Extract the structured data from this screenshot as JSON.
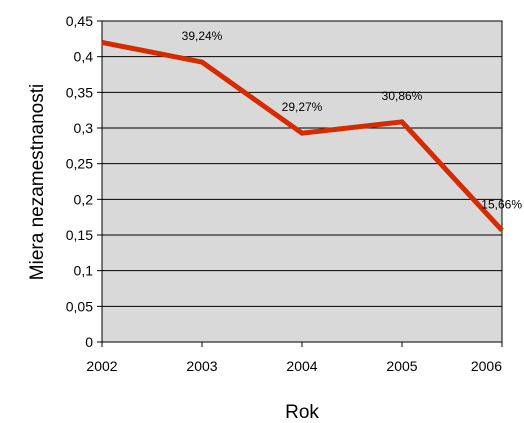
{
  "chart_data": {
    "type": "line",
    "title": "",
    "xlabel": "Rok",
    "ylabel": "Miera nezamestnanosti",
    "categories": [
      "2002",
      "2003",
      "2004",
      "2005",
      "2006"
    ],
    "series": [
      {
        "values": [
          0.42,
          0.3924,
          0.2927,
          0.3086,
          0.1566
        ],
        "labels": [
          "",
          "39,24%",
          "29,27%",
          "30,86%",
          "15,66%"
        ],
        "color": "#d62a00"
      }
    ],
    "yticks": [
      "0",
      "0,05",
      "0,1",
      "0,15",
      "0,2",
      "0,25",
      "0,3",
      "0,35",
      "0,4",
      "0,45"
    ],
    "ylim": [
      0,
      0.45
    ],
    "grid": true,
    "plot_background": "#d9d9d9",
    "legend": "none"
  }
}
